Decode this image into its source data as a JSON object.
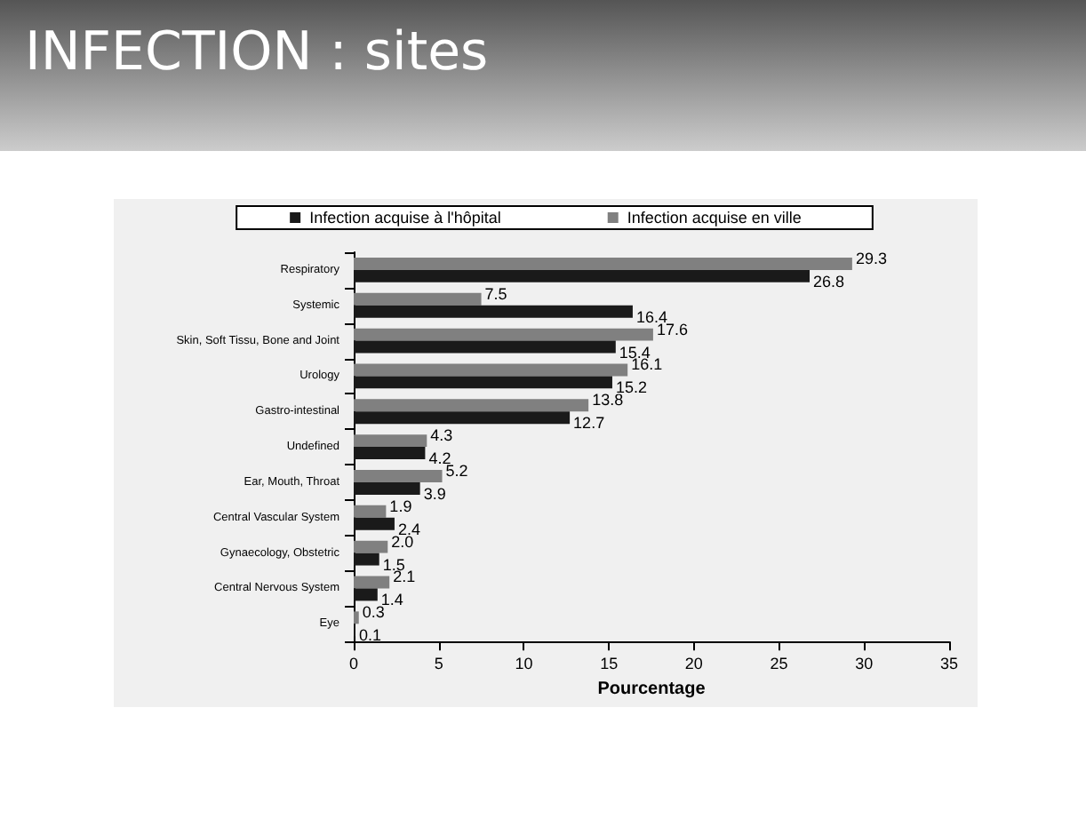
{
  "chart_data": {
    "type": "bar",
    "orientation": "horizontal",
    "title": "INFECTION : sites",
    "xlabel": "Pourcentage",
    "categories": [
      "Respiratory",
      "Systemic",
      "Skin, Soft Tissu, Bone and Joint",
      "Urology",
      "Gastro-intestinal",
      "Undefined",
      "Ear, Mouth, Throat",
      "Central Vascular System",
      "Gynaecology, Obstetric",
      "Central Nervous System",
      "Eye"
    ],
    "series": [
      {
        "name": "Infection acquise à l'hôpital",
        "color": "#1a1a1a",
        "values": [
          26.8,
          16.4,
          15.4,
          15.2,
          12.7,
          4.2,
          3.9,
          2.4,
          1.5,
          1.4,
          0.1
        ],
        "value_labels": [
          "26.8",
          "16.4",
          "15.4",
          "15.2",
          "12.7",
          "4.2",
          "3.9",
          "2.4",
          "1.5",
          "1.4",
          "0.1"
        ]
      },
      {
        "name": "Infection acquise en ville",
        "color": "#808080",
        "values": [
          29.3,
          7.5,
          17.6,
          16.1,
          13.8,
          4.3,
          5.2,
          1.9,
          2.0,
          2.1,
          0.3
        ],
        "value_labels": [
          "29.3",
          "7.5",
          "17.6",
          "16.1",
          "13.8",
          "4.3",
          "5.2",
          "1.9",
          "2.0",
          "2.1",
          "0.3"
        ]
      }
    ],
    "xlim": [
      0,
      35
    ],
    "xticks": [
      0,
      5,
      10,
      15,
      20,
      25,
      30,
      35
    ],
    "grid": false,
    "legend": "top"
  }
}
